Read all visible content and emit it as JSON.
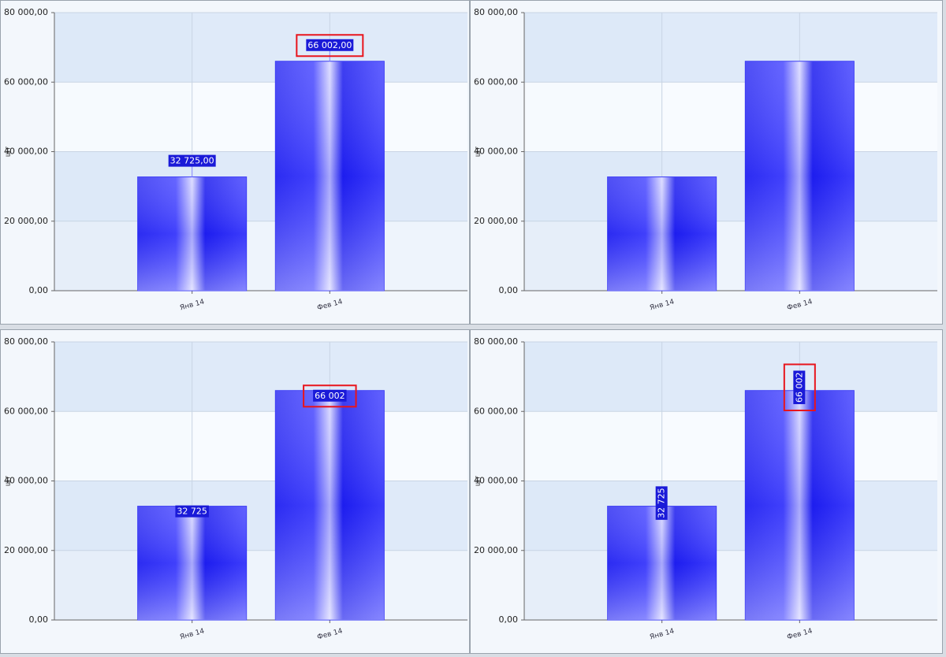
{
  "chart_data": [
    {
      "type": "bar",
      "y_label": "шт",
      "categories": [
        "Янв 14",
        "Фев 14"
      ],
      "values": [
        32725,
        66002
      ],
      "value_labels": [
        "32 725,00",
        "66 002,00"
      ],
      "label_position": "outside",
      "label_rotation": 0,
      "highlight_label": 1,
      "color": "#2c2cf4",
      "ylim": [
        0,
        80000
      ],
      "yticks": [
        {
          "value": 0,
          "label": "0,00"
        },
        {
          "value": 20000,
          "label": "20 000,00"
        },
        {
          "value": 40000,
          "label": "40 000,00"
        },
        {
          "value": 60000,
          "label": "60 000,00"
        },
        {
          "value": 80000,
          "label": "80 000,00"
        }
      ],
      "grid": true
    },
    {
      "type": "bar",
      "y_label": "шт",
      "categories": [
        "Янв 14",
        "Фев 14"
      ],
      "values": [
        32725,
        66002
      ],
      "color": "#2c2cf4",
      "ylim": [
        0,
        80000
      ],
      "yticks": [
        {
          "value": 0,
          "label": "0,00"
        },
        {
          "value": 20000,
          "label": "20 000,00"
        },
        {
          "value": 40000,
          "label": "40 000,00"
        },
        {
          "value": 60000,
          "label": "60 000,00"
        },
        {
          "value": 80000,
          "label": "80 000,00"
        }
      ],
      "grid": true
    },
    {
      "type": "bar",
      "y_label": "шт",
      "categories": [
        "Янв 14",
        "Фев 14"
      ],
      "values": [
        32725,
        66002
      ],
      "value_labels": [
        "32 725",
        "66 002"
      ],
      "label_position": "inside",
      "label_rotation": 0,
      "highlight_label": 1,
      "color": "#2c2cf4",
      "ylim": [
        0,
        80000
      ],
      "yticks": [
        {
          "value": 0,
          "label": "0,00"
        },
        {
          "value": 20000,
          "label": "20 000,00"
        },
        {
          "value": 40000,
          "label": "40 000,00"
        },
        {
          "value": 60000,
          "label": "60 000,00"
        },
        {
          "value": 80000,
          "label": "80 000,00"
        }
      ],
      "grid": true
    },
    {
      "type": "bar",
      "y_label": "шт",
      "categories": [
        "Янв 14",
        "Фев 14"
      ],
      "values": [
        32725,
        66002
      ],
      "value_labels": [
        "32 725",
        "66 002"
      ],
      "label_position": "center",
      "label_rotation": -90,
      "highlight_label": 1,
      "color": "#2c2cf4",
      "ylim": [
        0,
        80000
      ],
      "yticks": [
        {
          "value": 0,
          "label": "0,00"
        },
        {
          "value": 20000,
          "label": "20 000,00"
        },
        {
          "value": 40000,
          "label": "40 000,00"
        },
        {
          "value": 60000,
          "label": "60 000,00"
        },
        {
          "value": 80000,
          "label": "80 000,00"
        }
      ],
      "grid": true
    }
  ]
}
